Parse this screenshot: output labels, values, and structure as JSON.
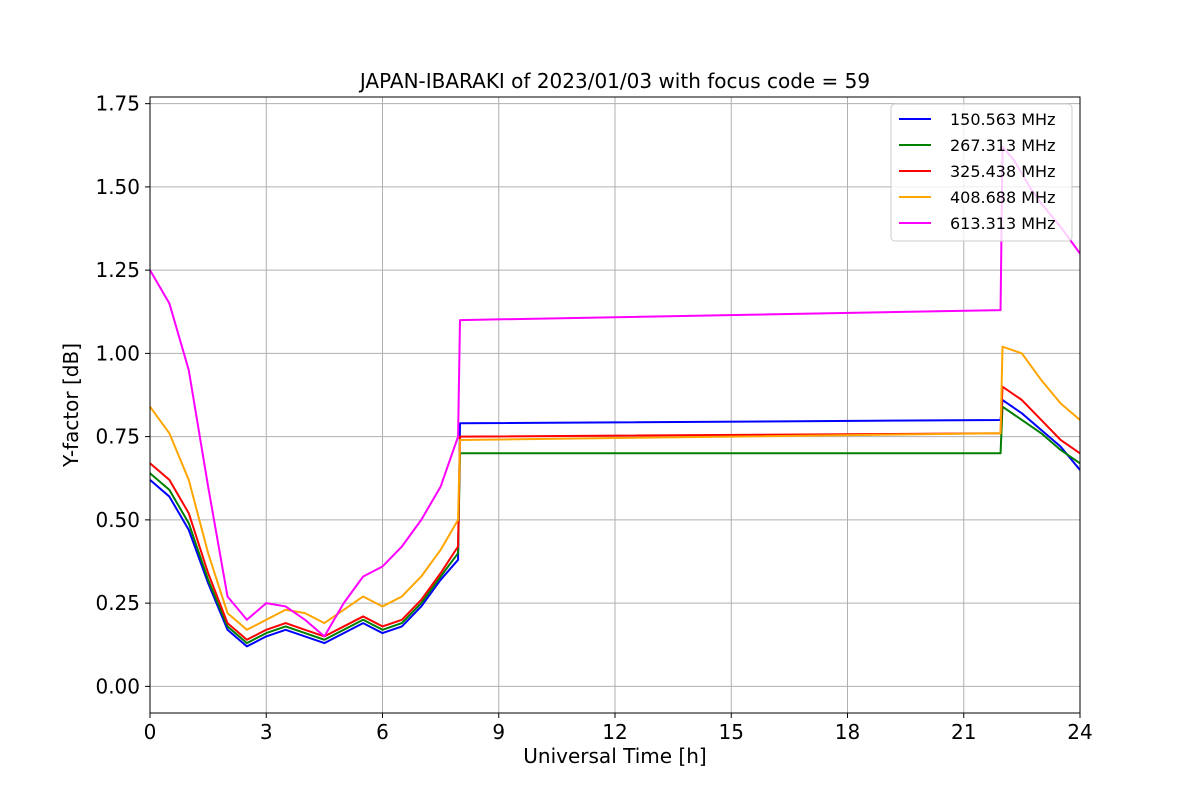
{
  "chart_data": {
    "type": "line",
    "title": "JAPAN-IBARAKI of 2023/01/03 with focus code = 59",
    "xlabel": "Universal Time [h]",
    "ylabel": "Y-factor [dB]",
    "xlim": [
      0,
      24
    ],
    "ylim": [
      -0.08,
      1.77
    ],
    "xticks": [
      0,
      3,
      6,
      9,
      12,
      15,
      18,
      21,
      24
    ],
    "yticks": [
      0.0,
      0.25,
      0.5,
      0.75,
      1.0,
      1.25,
      1.5,
      1.75
    ],
    "xtick_labels": [
      "0",
      "3",
      "6",
      "9",
      "12",
      "15",
      "18",
      "21",
      "24"
    ],
    "ytick_labels": [
      "0.00",
      "0.25",
      "0.50",
      "0.75",
      "1.00",
      "1.25",
      "1.50",
      "1.75"
    ],
    "grid": true,
    "legend_position": "top-right",
    "series": [
      {
        "name": "150.563 MHz",
        "color": "#0000ff",
        "x": [
          0,
          0.5,
          1.0,
          1.5,
          2.0,
          2.5,
          3.0,
          3.5,
          4.0,
          4.5,
          5.0,
          5.5,
          6.0,
          6.5,
          7.0,
          7.5,
          7.95,
          8.0,
          21.95,
          22.0,
          22.5,
          23.0,
          23.5,
          24.0
        ],
        "values": [
          0.62,
          0.57,
          0.47,
          0.31,
          0.17,
          0.12,
          0.15,
          0.17,
          0.15,
          0.13,
          0.16,
          0.19,
          0.16,
          0.18,
          0.24,
          0.32,
          0.38,
          0.79,
          0.8,
          0.86,
          0.82,
          0.77,
          0.72,
          0.65
        ]
      },
      {
        "name": "267.313 MHz",
        "color": "#008000",
        "x": [
          0,
          0.5,
          1.0,
          1.5,
          2.0,
          2.5,
          3.0,
          3.5,
          4.0,
          4.5,
          5.0,
          5.5,
          6.0,
          6.5,
          7.0,
          7.5,
          7.95,
          8.0,
          21.95,
          22.0,
          22.5,
          23.0,
          23.5,
          24.0
        ],
        "values": [
          0.64,
          0.59,
          0.49,
          0.32,
          0.18,
          0.13,
          0.16,
          0.18,
          0.16,
          0.14,
          0.17,
          0.2,
          0.17,
          0.19,
          0.25,
          0.33,
          0.4,
          0.7,
          0.7,
          0.84,
          0.8,
          0.76,
          0.71,
          0.67
        ]
      },
      {
        "name": "325.438 MHz",
        "color": "#ff0000",
        "x": [
          0,
          0.5,
          1.0,
          1.5,
          2.0,
          2.5,
          3.0,
          3.5,
          4.0,
          4.5,
          5.0,
          5.5,
          6.0,
          6.5,
          7.0,
          7.5,
          7.95,
          8.0,
          21.95,
          22.0,
          22.5,
          23.0,
          23.5,
          24.0
        ],
        "values": [
          0.67,
          0.62,
          0.52,
          0.34,
          0.19,
          0.14,
          0.17,
          0.19,
          0.17,
          0.15,
          0.18,
          0.21,
          0.18,
          0.2,
          0.26,
          0.34,
          0.42,
          0.75,
          0.76,
          0.9,
          0.86,
          0.8,
          0.74,
          0.7
        ]
      },
      {
        "name": "408.688 MHz",
        "color": "#ffa500",
        "x": [
          0,
          0.5,
          1.0,
          1.5,
          2.0,
          2.5,
          3.0,
          3.5,
          4.0,
          4.5,
          5.0,
          5.5,
          6.0,
          6.5,
          7.0,
          7.5,
          7.95,
          8.0,
          21.95,
          22.0,
          22.5,
          23.0,
          23.5,
          24.0
        ],
        "values": [
          0.84,
          0.76,
          0.62,
          0.4,
          0.22,
          0.17,
          0.2,
          0.23,
          0.22,
          0.19,
          0.23,
          0.27,
          0.24,
          0.27,
          0.33,
          0.41,
          0.5,
          0.74,
          0.76,
          1.02,
          1.0,
          0.92,
          0.85,
          0.8
        ]
      },
      {
        "name": "613.313 MHz",
        "color": "#ff00ff",
        "x": [
          0,
          0.5,
          1.0,
          1.5,
          2.0,
          2.5,
          3.0,
          3.5,
          4.0,
          4.5,
          5.0,
          5.5,
          6.0,
          6.5,
          7.0,
          7.5,
          7.95,
          8.0,
          21.95,
          22.0,
          22.3,
          22.7,
          23.0,
          23.5,
          24.0
        ],
        "values": [
          1.25,
          1.15,
          0.95,
          0.6,
          0.27,
          0.2,
          0.25,
          0.24,
          0.2,
          0.15,
          0.25,
          0.33,
          0.36,
          0.42,
          0.5,
          0.6,
          0.75,
          1.1,
          1.13,
          1.62,
          1.58,
          1.5,
          1.45,
          1.38,
          1.3
        ]
      }
    ]
  }
}
